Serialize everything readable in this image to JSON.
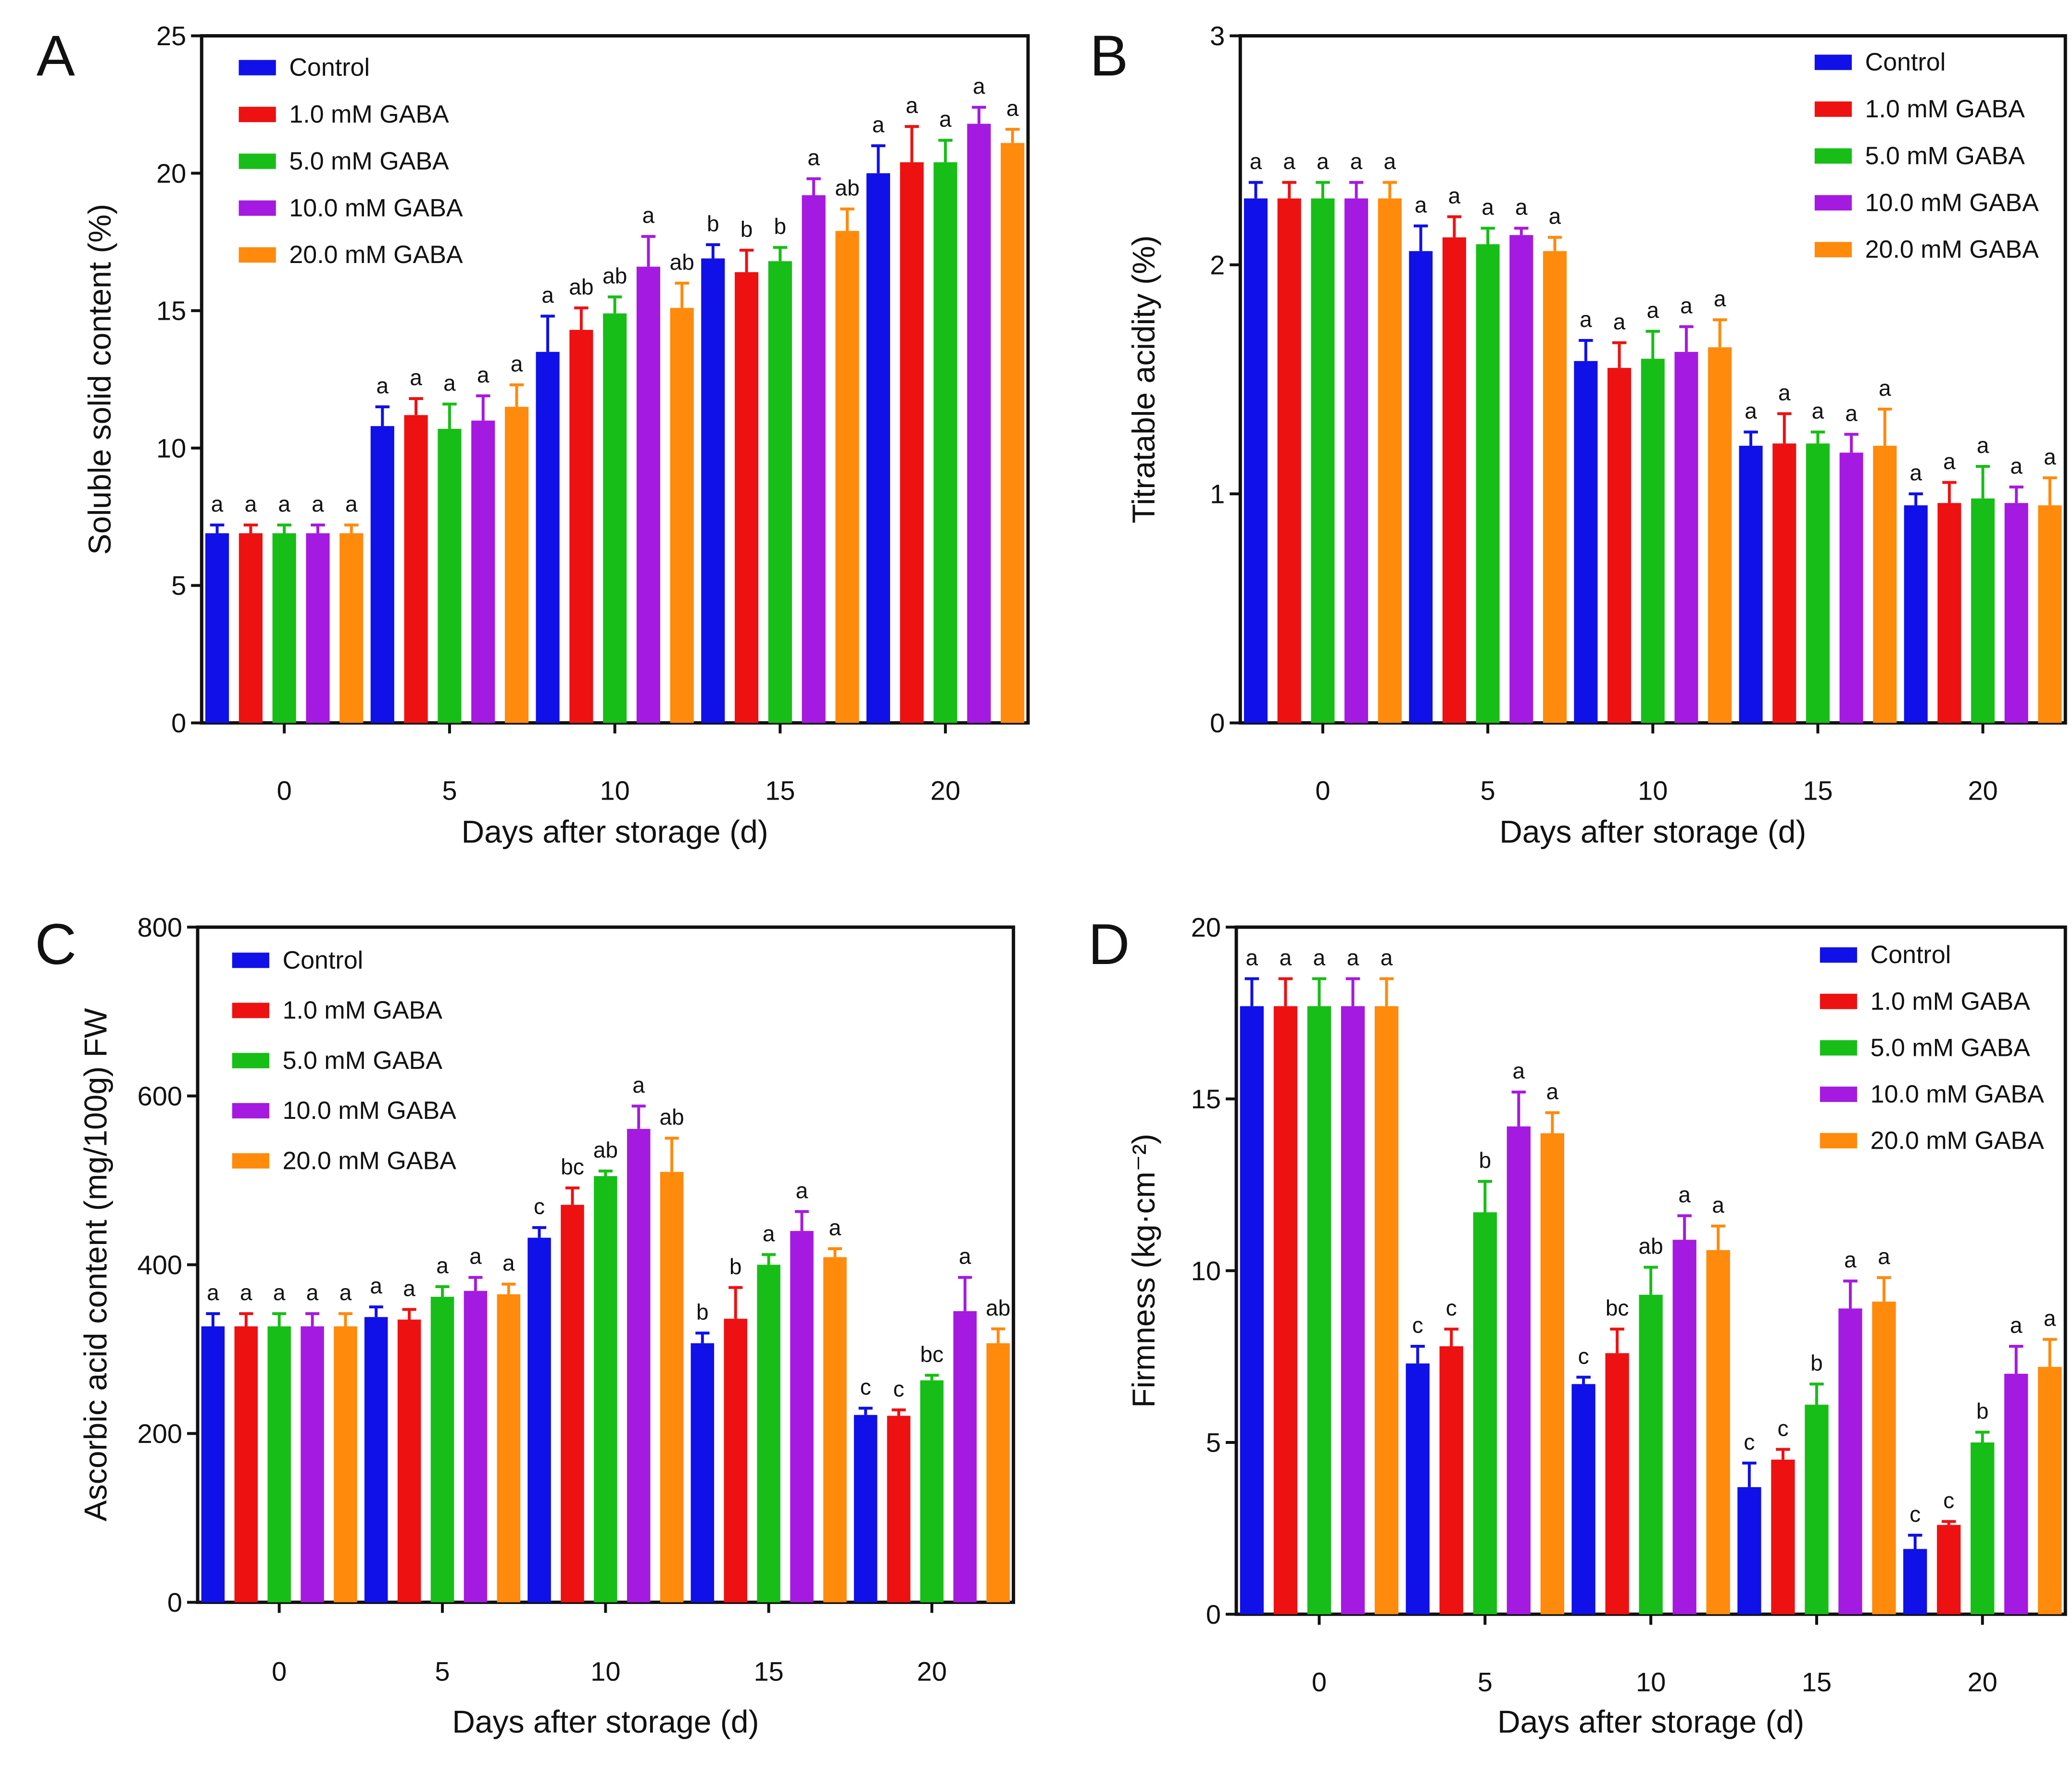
{
  "colors": {
    "Control": "#1010e8",
    "1.0 mM GABA": "#ee1111",
    "5.0 mM GABA": "#17be17",
    "10.0 mM GABA": "#a51ae0",
    "20.0 mM GABA": "#ff8a0c"
  },
  "chart_data": [
    {
      "panel": "A",
      "type": "bar",
      "xlabel": "Days after storage (d)",
      "ylabel": "Soluble solid content (%)",
      "ylim": [
        0,
        25
      ],
      "yticks": [
        0,
        5,
        10,
        15,
        20,
        25
      ],
      "legend_position": "top-left",
      "categories": [
        "0",
        "5",
        "10",
        "15",
        "20"
      ],
      "series": [
        {
          "name": "Control",
          "values": [
            6.9,
            10.8,
            13.5,
            16.9,
            20.0
          ],
          "errors": [
            0.3,
            0.7,
            1.3,
            0.5,
            1.0
          ],
          "labels": [
            "a",
            "a",
            "a",
            "b",
            "a"
          ]
        },
        {
          "name": "1.0 mM GABA",
          "values": [
            6.9,
            11.2,
            14.3,
            16.4,
            20.4
          ],
          "errors": [
            0.3,
            0.6,
            0.8,
            0.8,
            1.3
          ],
          "labels": [
            "a",
            "a",
            "ab",
            "b",
            "a"
          ]
        },
        {
          "name": "5.0 mM GABA",
          "values": [
            6.9,
            10.7,
            14.9,
            16.8,
            20.4
          ],
          "errors": [
            0.3,
            0.9,
            0.6,
            0.5,
            0.8
          ],
          "labels": [
            "a",
            "a",
            "ab",
            "b",
            "a"
          ]
        },
        {
          "name": "10.0 mM GABA",
          "values": [
            6.9,
            11.0,
            16.6,
            19.2,
            21.8
          ],
          "errors": [
            0.3,
            0.9,
            1.1,
            0.6,
            0.6
          ],
          "labels": [
            "a",
            "a",
            "a",
            "a",
            "a"
          ]
        },
        {
          "name": "20.0 mM GABA",
          "values": [
            6.9,
            11.5,
            15.1,
            17.9,
            21.1
          ],
          "errors": [
            0.3,
            0.8,
            0.9,
            0.8,
            0.5
          ],
          "labels": [
            "a",
            "a",
            "ab",
            "ab",
            "a"
          ]
        }
      ]
    },
    {
      "panel": "B",
      "type": "bar",
      "xlabel": "Days after storage (d)",
      "ylabel": "Titratable acidity (%)",
      "ylim": [
        0,
        3
      ],
      "yticks": [
        0,
        1,
        2,
        3
      ],
      "legend_position": "top-right",
      "categories": [
        "0",
        "5",
        "10",
        "15",
        "20"
      ],
      "series": [
        {
          "name": "Control",
          "values": [
            2.29,
            2.06,
            1.58,
            1.21,
            0.95
          ],
          "errors": [
            0.07,
            0.11,
            0.09,
            0.06,
            0.05
          ],
          "labels": [
            "a",
            "a",
            "a",
            "a",
            "a"
          ]
        },
        {
          "name": "1.0 mM GABA",
          "values": [
            2.29,
            2.12,
            1.55,
            1.22,
            0.96
          ],
          "errors": [
            0.07,
            0.09,
            0.11,
            0.13,
            0.09
          ],
          "labels": [
            "a",
            "a",
            "a",
            "a",
            "a"
          ]
        },
        {
          "name": "5.0 mM GABA",
          "values": [
            2.29,
            2.09,
            1.59,
            1.22,
            0.98
          ],
          "errors": [
            0.07,
            0.07,
            0.12,
            0.05,
            0.14
          ],
          "labels": [
            "a",
            "a",
            "a",
            "a",
            "a"
          ]
        },
        {
          "name": "10.0 mM GABA",
          "values": [
            2.29,
            2.13,
            1.62,
            1.18,
            0.96
          ],
          "errors": [
            0.07,
            0.03,
            0.11,
            0.08,
            0.07
          ],
          "labels": [
            "a",
            "a",
            "a",
            "a",
            "a"
          ]
        },
        {
          "name": "20.0 mM GABA",
          "values": [
            2.29,
            2.06,
            1.64,
            1.21,
            0.95
          ],
          "errors": [
            0.07,
            0.06,
            0.12,
            0.16,
            0.12
          ],
          "labels": [
            "a",
            "a",
            "a",
            "a",
            "a"
          ]
        }
      ]
    },
    {
      "panel": "C",
      "type": "bar",
      "xlabel": "Days after storage (d)",
      "ylabel": "Ascorbic acid content (mg/100g) FW",
      "ylim": [
        0,
        800
      ],
      "yticks": [
        0,
        200,
        400,
        600,
        800
      ],
      "legend_position": "top-left",
      "categories": [
        "0",
        "5",
        "10",
        "15",
        "20"
      ],
      "series": [
        {
          "name": "Control",
          "values": [
            327,
            338,
            432,
            307,
            222
          ],
          "errors": [
            15,
            12,
            12,
            12,
            8
          ],
          "labels": [
            "a",
            "a",
            "c",
            "b",
            "c"
          ]
        },
        {
          "name": "1.0 mM GABA",
          "values": [
            327,
            335,
            471,
            336,
            221
          ],
          "errors": [
            15,
            12,
            20,
            37,
            7
          ],
          "labels": [
            "a",
            "a",
            "bc",
            "b",
            "c"
          ]
        },
        {
          "name": "5.0 mM GABA",
          "values": [
            327,
            362,
            505,
            400,
            263
          ],
          "errors": [
            15,
            12,
            6,
            12,
            6
          ],
          "labels": [
            "a",
            "a",
            "ab",
            "a",
            "bc"
          ]
        },
        {
          "name": "10.0 mM GABA",
          "values": [
            327,
            369,
            561,
            440,
            345
          ],
          "errors": [
            15,
            16,
            27,
            23,
            40
          ],
          "labels": [
            "a",
            "a",
            "a",
            "a",
            "a"
          ]
        },
        {
          "name": "20.0 mM GABA",
          "values": [
            327,
            365,
            510,
            409,
            307
          ],
          "errors": [
            15,
            12,
            40,
            10,
            17
          ],
          "labels": [
            "a",
            "a",
            "ab",
            "a",
            "ab"
          ]
        }
      ]
    },
    {
      "panel": "D",
      "type": "bar",
      "xlabel": "Days after storage (d)",
      "ylabel": "Firmness (kg·cm⁻²)",
      "ylim": [
        0,
        20
      ],
      "yticks": [
        0,
        5,
        10,
        15,
        20
      ],
      "legend_position": "top-right",
      "categories": [
        "0",
        "5",
        "10",
        "15",
        "20"
      ],
      "series": [
        {
          "name": "Control",
          "values": [
            17.7,
            7.3,
            6.7,
            3.7,
            1.9
          ],
          "errors": [
            0.8,
            0.5,
            0.2,
            0.7,
            0.4
          ],
          "labels": [
            "a",
            "c",
            "c",
            "c",
            "c"
          ]
        },
        {
          "name": "1.0 mM GABA",
          "values": [
            17.7,
            7.8,
            7.6,
            4.5,
            2.6
          ],
          "errors": [
            0.8,
            0.5,
            0.7,
            0.3,
            0.1
          ],
          "labels": [
            "a",
            "c",
            "bc",
            "c",
            "c"
          ]
        },
        {
          "name": "5.0 mM GABA",
          "values": [
            17.7,
            11.7,
            9.3,
            6.1,
            5.0
          ],
          "errors": [
            0.8,
            0.9,
            0.8,
            0.6,
            0.3
          ],
          "labels": [
            "a",
            "b",
            "ab",
            "b",
            "b"
          ]
        },
        {
          "name": "10.0 mM GABA",
          "values": [
            17.7,
            14.2,
            10.9,
            8.9,
            7.0
          ],
          "errors": [
            0.8,
            1.0,
            0.7,
            0.8,
            0.8
          ],
          "labels": [
            "a",
            "a",
            "a",
            "a",
            "a"
          ]
        },
        {
          "name": "20.0 mM GABA",
          "values": [
            17.7,
            14.0,
            10.6,
            9.1,
            7.2
          ],
          "errors": [
            0.8,
            0.6,
            0.7,
            0.7,
            0.8
          ],
          "labels": [
            "a",
            "a",
            "a",
            "a",
            "a"
          ]
        }
      ]
    }
  ]
}
